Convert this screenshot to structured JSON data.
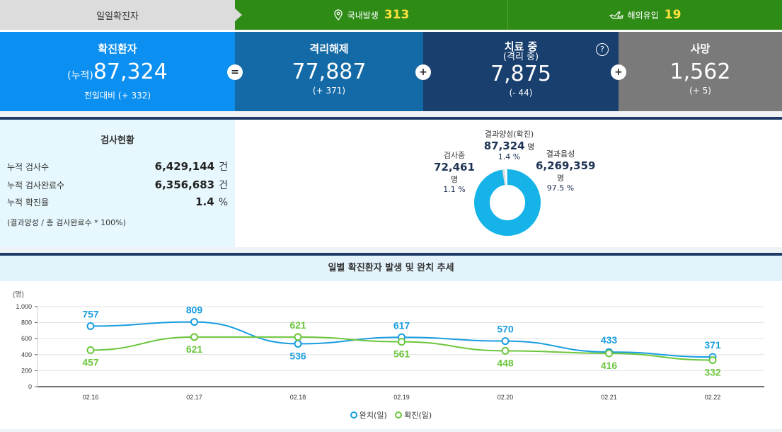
{
  "topbar": {
    "daily_label": "일일확진자",
    "domestic_label": "국내발생",
    "domestic_value": "313",
    "overseas_label": "해외유입",
    "overseas_value": "19"
  },
  "stats": {
    "confirmed": {
      "title": "확진환자",
      "prefix": "(누적)",
      "value": "87,324",
      "sub": "전일대비 (+ 332)"
    },
    "released": {
      "title": "격리해제",
      "value": "77,887",
      "sub": "(+ 371)"
    },
    "treatment": {
      "title": "치료 중",
      "subtitle": "(격리 중)",
      "value": "7,875",
      "sub": "(- 44)"
    },
    "deaths": {
      "title": "사망",
      "value": "1,562",
      "sub": "(+ 5)"
    },
    "op_equal": "=",
    "op_plus": "+",
    "help": "?"
  },
  "tests": {
    "title": "검사현황",
    "rows": [
      {
        "label": "누적 검사수",
        "value": "6,429,144",
        "unit": "건"
      },
      {
        "label": "누적 검사완료수",
        "value": "6,356,683",
        "unit": "건"
      },
      {
        "label": "누적 확진율",
        "value": "1.4",
        "unit": "%"
      }
    ],
    "note": "(결과양성 / 총 검사완료수 * 100%)"
  },
  "donut": {
    "testing": {
      "label": "검사중",
      "value": "72,461",
      "unit": "명",
      "pct": "1.1 %"
    },
    "positive": {
      "label": "결과양성(확진)",
      "value": "87,324",
      "unit": "명",
      "pct": "1.4 %"
    },
    "negative": {
      "label": "결과음성",
      "value": "6,269,359",
      "unit": "명",
      "pct": "97.5 %"
    },
    "colors": {
      "negative": "#16b3e8",
      "positive": "#ffffff",
      "testing": "#dddddd"
    }
  },
  "trend": {
    "title": "일별 확진환자 발생 및 완치 추세",
    "unit_label": "(명)",
    "legend_released": "완치(일)",
    "legend_confirmed": "확진(일)"
  },
  "chart_data": {
    "type": "line",
    "title": "일별 확진환자 발생 및 완치 추세",
    "ylabel": "(명)",
    "ylim": [
      0,
      1000
    ],
    "yticks": [
      "0",
      "200",
      "400",
      "600",
      "800",
      "1,000"
    ],
    "categories": [
      "02.16",
      "02.17",
      "02.18",
      "02.19",
      "02.20",
      "02.21",
      "02.22"
    ],
    "series": [
      {
        "name": "완치(일)",
        "color": "#1a9de0",
        "values": [
          757,
          809,
          536,
          617,
          570,
          433,
          371
        ]
      },
      {
        "name": "확진(일)",
        "color": "#6cc63d",
        "values": [
          457,
          621,
          621,
          561,
          448,
          416,
          332
        ]
      }
    ]
  }
}
